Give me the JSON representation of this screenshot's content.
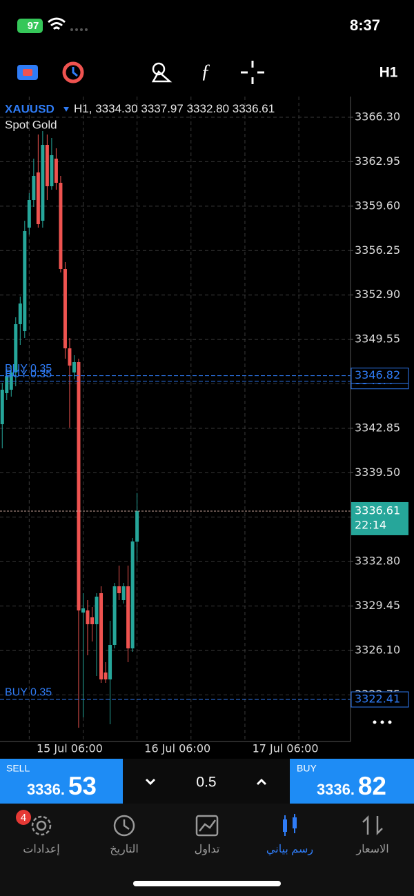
{
  "status_bar": {
    "battery": "97",
    "time": "8:37"
  },
  "toolbar": {
    "timeframe": "H1"
  },
  "chart_data": {
    "type": "candlestick",
    "title": "XAUUSD",
    "subtitle": "Spot Gold",
    "header": {
      "timeframe": "H1,",
      "open": "3334.30",
      "high": "3337.97",
      "low": "3332.80",
      "close": "3336.61"
    },
    "categories": [
      null,
      null,
      null,
      null,
      null,
      null,
      null,
      null,
      null,
      null,
      null,
      null,
      null,
      null,
      null,
      "15 Jul 06:00",
      null,
      null,
      null,
      null,
      null,
      null,
      null,
      null,
      null,
      null,
      null,
      null,
      null,
      null,
      null,
      null,
      null,
      null,
      null,
      null,
      null,
      null,
      null,
      "16 Jul 06:00",
      null,
      null,
      null,
      null,
      null,
      null,
      null,
      null,
      null,
      null,
      null,
      null,
      null,
      null,
      null,
      null,
      null,
      null,
      null,
      null,
      null,
      null,
      null,
      "17 Jul 06:00",
      null,
      null,
      null,
      null,
      null,
      null,
      null,
      null,
      null,
      null,
      null,
      null,
      null,
      null
    ],
    "open": [
      3343.16,
      3345.5,
      3345.76,
      3347.06,
      3350.7,
      3350.18,
      3357.98,
      3360.06,
      3362.14,
      3358.5,
      3364.22,
      3361.1,
      3363.18,
      3361.36,
      3354.86,
      3348.88,
      3347.06,
      3347.84,
      3328.96,
      3329.12,
      3328.6,
      3328.08,
      3330.42,
      3324.44,
      3323.92,
      3326.52,
      3330.94,
      3329.9,
      3330.94,
      3326.26,
      3334.3,
      null,
      null,
      null,
      null,
      null,
      null,
      null,
      null,
      null,
      null,
      null,
      null,
      null,
      null,
      null,
      null,
      null,
      null,
      null,
      null,
      null,
      null,
      null,
      null,
      null,
      null,
      null,
      null,
      null,
      null,
      null,
      null,
      null,
      null,
      null,
      null,
      null,
      null,
      null,
      null,
      null,
      null,
      null,
      null,
      null,
      null,
      null
    ],
    "high": [
      3346.28,
      3347.32,
      3347.58,
      3351.22,
      3352.78,
      3358.5,
      3360.58,
      3363.18,
      3365,
      3365.26,
      3365,
      3364.74,
      3363.96,
      3361.88,
      3355.38,
      3349.66,
      3348.36,
      3348.1,
      3330.42,
      3329.9,
      3329.38,
      3330.42,
      3330.94,
      3325.22,
      3328.34,
      3331.2,
      3332.5,
      3331.2,
      3332.5,
      3334.58,
      3337.97,
      null,
      null,
      null,
      null,
      null,
      null,
      null,
      null,
      null,
      null,
      null,
      null,
      null,
      null,
      null,
      null,
      null,
      null,
      null,
      null,
      null,
      null,
      null,
      null,
      null,
      null,
      null,
      null,
      null,
      null,
      null,
      null,
      null,
      null,
      null,
      null,
      null,
      null,
      null,
      null,
      null,
      null,
      null,
      null,
      null,
      null,
      null
    ],
    "low": [
      3341.34,
      3344.98,
      3345.24,
      3346.02,
      3349.14,
      3349.66,
      3357.46,
      3359.54,
      3357.98,
      3357.98,
      3360.06,
      3360.84,
      3360.84,
      3354.6,
      3348.1,
      3342.9,
      3346.54,
      3320.28,
      3321.06,
      3325.74,
      3326.78,
      3324.18,
      3323.66,
      3323.66,
      3320.54,
      3326.26,
      3329.9,
      3329.64,
      3325.22,
      3326,
      3332.8,
      null,
      null,
      null,
      null,
      null,
      null,
      null,
      null,
      null,
      null,
      null,
      null,
      null,
      null,
      null,
      null,
      null,
      null,
      null,
      null,
      null,
      null,
      null,
      null,
      null,
      null,
      null,
      null,
      null,
      null,
      null,
      null,
      null,
      null,
      null,
      null,
      null,
      null,
      null,
      null,
      null,
      null,
      null,
      null,
      null,
      null,
      null
    ],
    "close": [
      3345.76,
      3346.8,
      3347.06,
      3350.7,
      3352.26,
      3357.72,
      3360.06,
      3361.88,
      3358.24,
      3364.22,
      3361.1,
      3363.44,
      3361.36,
      3354.86,
      3348.88,
      3347.58,
      3347.84,
      3329.12,
      3329.28,
      3328.08,
      3328.08,
      3330.16,
      3323.92,
      3323.92,
      3326.52,
      3330.94,
      3330.42,
      3330.94,
      3326.26,
      3334.32,
      3336.61,
      null,
      null,
      null,
      null,
      null,
      null,
      null,
      null,
      null,
      null,
      null,
      null,
      null,
      null,
      null,
      null,
      null,
      null,
      null,
      null,
      null,
      null,
      null,
      null,
      null,
      null,
      null,
      null,
      null,
      null,
      null,
      null,
      null,
      null,
      null,
      null,
      null,
      null,
      null,
      null,
      null,
      null,
      null,
      null,
      null,
      null,
      null
    ],
    "up_color": "#26a69a",
    "down_color": "#ef5350",
    "ylim": [
      3319.24,
      3367.86
    ],
    "yticks": [
      {
        "value": 3366.3,
        "label": "3366.30"
      },
      {
        "value": 3362.95,
        "label": "3362.95"
      },
      {
        "value": 3359.6,
        "label": "3359.60"
      },
      {
        "value": 3356.25,
        "label": "3356.25"
      },
      {
        "value": 3352.9,
        "label": "3352.90"
      },
      {
        "value": 3349.55,
        "label": "3349.55"
      },
      {
        "value": 3346.2,
        "label": "3346.20"
      },
      {
        "value": 3342.85,
        "label": "3342.85"
      },
      {
        "value": 3339.5,
        "label": "3339.50"
      },
      {
        "value": 3336.15,
        "label": "3336.15"
      },
      {
        "value": 3332.8,
        "label": "3332.80"
      },
      {
        "value": 3329.45,
        "label": "3329.45"
      },
      {
        "value": 3326.1,
        "label": "3326.10"
      },
      {
        "value": 3322.75,
        "label": "3322.75"
      }
    ],
    "grid": true,
    "orders": [
      {
        "label": "BUY 0.35",
        "value": 3346.82
      },
      {
        "label": "BUY 0.35",
        "value": 3346.4
      },
      {
        "label": "BUY 0.35",
        "value": 3322.41
      }
    ],
    "order_color": "#2f7cf6",
    "current_price": {
      "label": "3336.61",
      "countdown": "22:14"
    }
  },
  "trade_panel": {
    "sell": {
      "label": "SELL",
      "price_main": "3336.",
      "price_big": "53"
    },
    "volume": "0.5",
    "buy": {
      "label": "BUY",
      "price_main": "3336.",
      "price_big": "82"
    }
  },
  "tab_bar": {
    "badge": "4",
    "tabs": [
      "إعدادات",
      "التاريخ",
      "تداول",
      "رسم بياني",
      "الاسعار"
    ]
  }
}
